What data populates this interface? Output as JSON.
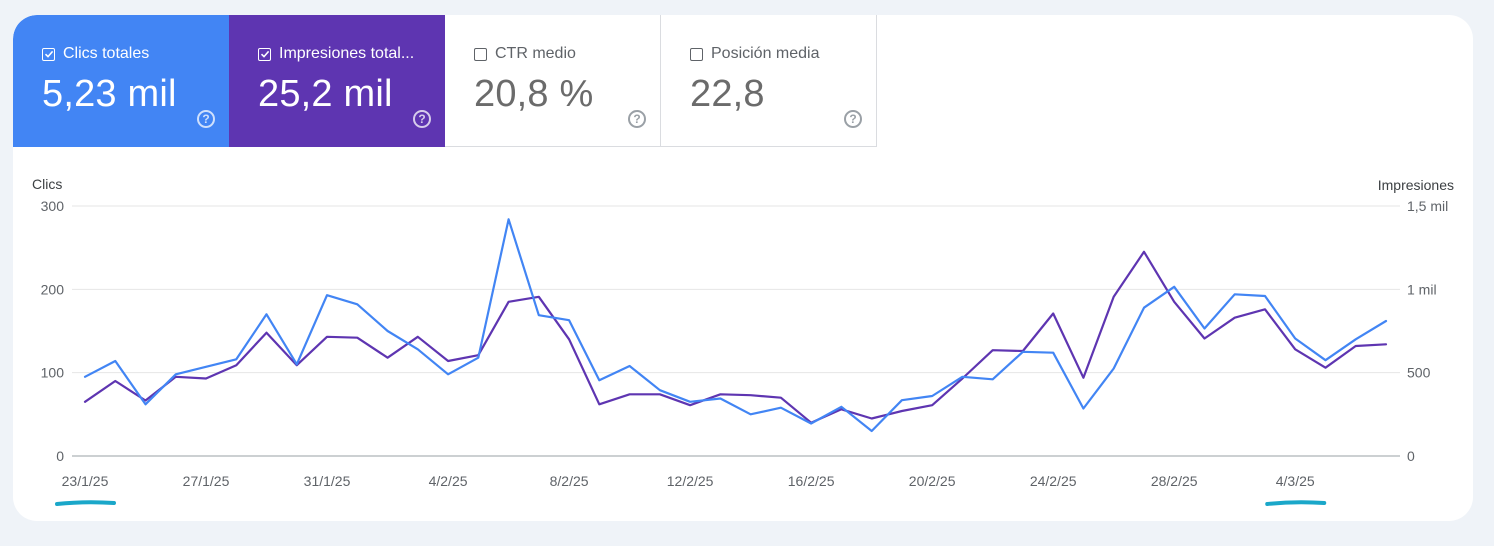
{
  "metrics": [
    {
      "label": "Clics totales",
      "value": "5,23 mil",
      "checked": true,
      "color": "#4285f4"
    },
    {
      "label": "Impresiones total...",
      "value": "25,2 mil",
      "checked": true,
      "color": "#5e35b1"
    },
    {
      "label": "CTR medio",
      "value": "20,8 %",
      "checked": false
    },
    {
      "label": "Posición media",
      "value": "22,8",
      "checked": false
    }
  ],
  "help_glyph": "?",
  "chart_data": {
    "type": "line",
    "x_tick_labels": [
      "23/1/25",
      "27/1/25",
      "31/1/25",
      "4/2/25",
      "8/2/25",
      "12/2/25",
      "16/2/25",
      "20/2/25",
      "24/2/25",
      "28/2/25",
      "4/3/25"
    ],
    "x_tick_dates": [
      "2025-01-23",
      "2025-01-27",
      "2025-01-31",
      "2025-02-04",
      "2025-02-08",
      "2025-02-12",
      "2025-02-16",
      "2025-02-20",
      "2025-02-24",
      "2025-02-28",
      "2025-03-04"
    ],
    "x": [
      "2025-01-23",
      "2025-01-24",
      "2025-01-25",
      "2025-01-26",
      "2025-01-27",
      "2025-01-28",
      "2025-01-29",
      "2025-01-30",
      "2025-01-31",
      "2025-02-01",
      "2025-02-02",
      "2025-02-03",
      "2025-02-04",
      "2025-02-05",
      "2025-02-06",
      "2025-02-07",
      "2025-02-08",
      "2025-02-09",
      "2025-02-10",
      "2025-02-11",
      "2025-02-12",
      "2025-02-13",
      "2025-02-14",
      "2025-02-15",
      "2025-02-16",
      "2025-02-17",
      "2025-02-18",
      "2025-02-19",
      "2025-02-20",
      "2025-02-21",
      "2025-02-22",
      "2025-02-23",
      "2025-02-24",
      "2025-02-25",
      "2025-02-26",
      "2025-02-27",
      "2025-02-28",
      "2025-03-01",
      "2025-03-02",
      "2025-03-03",
      "2025-03-04",
      "2025-03-05",
      "2025-03-06",
      "2025-03-07"
    ],
    "left_axis": {
      "label": "Clics",
      "ticks": [
        "0",
        "100",
        "200",
        "300"
      ],
      "tick_values": [
        0,
        100,
        200,
        300
      ],
      "range": [
        0,
        300
      ]
    },
    "right_axis": {
      "label": "Impresiones",
      "ticks": [
        "0",
        "500",
        "1 mil",
        "1,5 mil"
      ],
      "tick_values": [
        0,
        500,
        1000,
        1500
      ],
      "range": [
        0,
        1500
      ]
    },
    "grid": true,
    "series": [
      {
        "name": "Clics totales",
        "axis": "left",
        "color": "#4285f4",
        "values": [
          95,
          114,
          62,
          98,
          107,
          116,
          170,
          110,
          193,
          182,
          150,
          128,
          98,
          118,
          284,
          169,
          163,
          91,
          108,
          79,
          65,
          69,
          50,
          58,
          39,
          59,
          30,
          67,
          72,
          95,
          92,
          125,
          124,
          57,
          105,
          178,
          203,
          153,
          194,
          192,
          141,
          115,
          140,
          162
        ]
      },
      {
        "name": "Impresiones totales",
        "axis": "right",
        "color": "#5e35b1",
        "values": [
          325,
          450,
          333,
          475,
          465,
          545,
          740,
          545,
          715,
          710,
          590,
          715,
          570,
          605,
          925,
          955,
          700,
          310,
          370,
          370,
          305,
          370,
          365,
          350,
          200,
          280,
          225,
          270,
          305,
          465,
          635,
          630,
          855,
          470,
          955,
          1225,
          925,
          705,
          830,
          880,
          640,
          530,
          660,
          670
        ]
      }
    ]
  }
}
